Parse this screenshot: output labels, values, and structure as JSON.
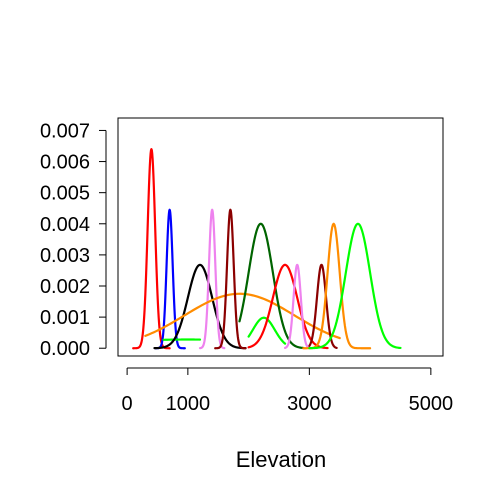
{
  "chart_data": {
    "type": "line",
    "title": "",
    "xlabel": "Elevation",
    "ylabel": "",
    "xlim": [
      -150,
      5200
    ],
    "ylim": [
      -0.00025,
      0.0074
    ],
    "x_ticks": [
      0,
      1000,
      3000,
      5000
    ],
    "x_tick_labels": [
      "0",
      "1000",
      "3000",
      "5000"
    ],
    "y_ticks": [
      0,
      0.001,
      0.002,
      0.003,
      0.004,
      0.005,
      0.006,
      0.007
    ],
    "y_tick_labels": [
      "0.000",
      "0.001",
      "0.002",
      "0.003",
      "0.004",
      "0.005",
      "0.006",
      "0.007"
    ],
    "grid": false,
    "legend": "none",
    "series": [
      {
        "color": "#ff0000",
        "mean": 400,
        "sd": 62,
        "peak": 0.0064,
        "xmin": 100,
        "xmax": 700
      },
      {
        "color": "#0000ff",
        "mean": 700,
        "sd": 50,
        "peak": 0.00445,
        "xmin": 470,
        "xmax": 950
      },
      {
        "color": "#00ff00",
        "mean": 1000,
        "sd": 1500,
        "peak": 0.00028,
        "xmin": 600,
        "xmax": 1200
      },
      {
        "color": "#000000",
        "mean": 1200,
        "sd": 200,
        "peak": 0.00268,
        "xmin": 450,
        "xmax": 1950
      },
      {
        "color": "#ee82ee",
        "mean": 1400,
        "sd": 52,
        "peak": 0.00445,
        "xmin": 1200,
        "xmax": 1600
      },
      {
        "color": "#ff8c00",
        "mean": 1850,
        "sd": 900,
        "peak": 0.00175,
        "xmin": 300,
        "xmax": 3500
      },
      {
        "color": "#8b0000",
        "mean": 1700,
        "sd": 55,
        "peak": 0.00445,
        "xmin": 1450,
        "xmax": 1950
      },
      {
        "color": "#006400",
        "mean": 2200,
        "sd": 200,
        "peak": 0.004,
        "xmin": 1850,
        "xmax": 2900
      },
      {
        "color": "#00ff00",
        "mean": 2250,
        "sd": 180,
        "peak": 0.00098,
        "xmin": 2000,
        "xmax": 2600
      },
      {
        "color": "#ff0000",
        "mean": 2600,
        "sd": 200,
        "peak": 0.00268,
        "xmin": 2000,
        "xmax": 3300
      },
      {
        "color": "#ee82ee",
        "mean": 2800,
        "sd": 60,
        "peak": 0.00268,
        "xmin": 2600,
        "xmax": 3000
      },
      {
        "color": "#8b0000",
        "mean": 3200,
        "sd": 75,
        "peak": 0.00268,
        "xmin": 3000,
        "xmax": 3450
      },
      {
        "color": "#ff8c00",
        "mean": 3400,
        "sd": 100,
        "peak": 0.004,
        "xmin": 2900,
        "xmax": 4000
      },
      {
        "color": "#00ff00",
        "mean": 3800,
        "sd": 200,
        "peak": 0.004,
        "xmin": 3000,
        "xmax": 4500
      }
    ]
  }
}
